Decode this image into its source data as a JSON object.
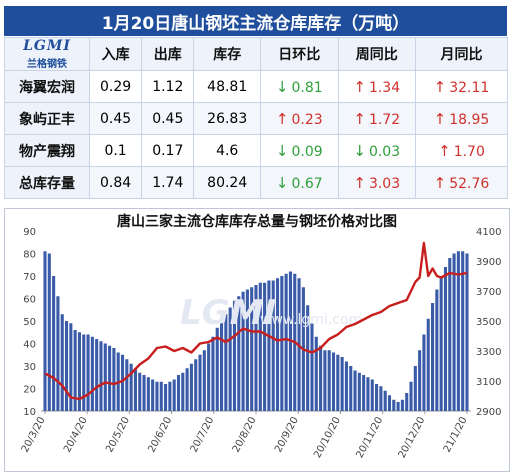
{
  "header": {
    "title": "1月20日唐山钢坯主流仓库库存（万吨）"
  },
  "table": {
    "logo_text": "LGMI",
    "logo_sub": "兰格钢铁",
    "columns": [
      "入库",
      "出库",
      "库存",
      "日环比",
      "周同比",
      "月同比"
    ],
    "rows": [
      {
        "name": "海翼宏润",
        "in": "0.29",
        "out": "1.12",
        "stock": "48.81",
        "dod": {
          "dir": "down",
          "val": "0.81"
        },
        "wow": {
          "dir": "up",
          "val": "1.34"
        },
        "mom": {
          "dir": "up",
          "val": "32.11"
        }
      },
      {
        "name": "象屿正丰",
        "in": "0.45",
        "out": "0.45",
        "stock": "26.83",
        "dod": {
          "dir": "up",
          "val": "0.23"
        },
        "wow": {
          "dir": "up",
          "val": "1.72"
        },
        "mom": {
          "dir": "up",
          "val": "18.95"
        }
      },
      {
        "name": "物产震翔",
        "in": "0.1",
        "out": "0.17",
        "stock": "4.6",
        "dod": {
          "dir": "down",
          "val": "0.09"
        },
        "wow": {
          "dir": "down",
          "val": "0.03"
        },
        "mom": {
          "dir": "up",
          "val": "1.70"
        }
      },
      {
        "name": "总库存量",
        "in": "0.84",
        "out": "1.74",
        "stock": "80.24",
        "dod": {
          "dir": "down",
          "val": "0.67"
        },
        "wow": {
          "dir": "up",
          "val": "3.03"
        },
        "mom": {
          "dir": "up",
          "val": "52.76"
        }
      }
    ],
    "colors": {
      "up": "#d0312d",
      "down": "#2f9e3b",
      "header_bg": "#1f4e9c"
    }
  },
  "chart_data": {
    "type": "bar+line",
    "title": "唐山三家主流仓库库存总量与钢坯价格对比图",
    "watermark": "LGMI",
    "watermark_sub": "www.lgmi.com",
    "x_tick_labels": [
      "20/3/20",
      "20/4/20",
      "20/5/20",
      "20/6/20",
      "20/7/20",
      "20/8/20",
      "20/9/20",
      "20/10/20",
      "20/11/20",
      "20/12/20",
      "21/1/20"
    ],
    "y_left": {
      "ylim": [
        10,
        90
      ],
      "ticks": [
        10,
        20,
        30,
        40,
        50,
        60,
        70,
        80,
        90
      ]
    },
    "y_right": {
      "ylim": [
        2900,
        4100
      ],
      "ticks": [
        2900,
        3100,
        3300,
        3500,
        3700,
        3900,
        4100
      ]
    },
    "series": [
      {
        "kind": "bar",
        "axis": "left",
        "color": "#3a5ba8",
        "points": [
          [
            0,
            81
          ],
          [
            1,
            80
          ],
          [
            2,
            70
          ],
          [
            3,
            61
          ],
          [
            4,
            53
          ],
          [
            5,
            50
          ],
          [
            6,
            49
          ],
          [
            7,
            46
          ],
          [
            8,
            45
          ],
          [
            9,
            44
          ],
          [
            10,
            44
          ],
          [
            11,
            43
          ],
          [
            12,
            42
          ],
          [
            13,
            41
          ],
          [
            14,
            40
          ],
          [
            15,
            39
          ],
          [
            16,
            38
          ],
          [
            17,
            36
          ],
          [
            18,
            35
          ],
          [
            19,
            33
          ],
          [
            20,
            31
          ],
          [
            21,
            29
          ],
          [
            22,
            27
          ],
          [
            23,
            26
          ],
          [
            24,
            25
          ],
          [
            25,
            24
          ],
          [
            26,
            23
          ],
          [
            27,
            23
          ],
          [
            28,
            22
          ],
          [
            29,
            23
          ],
          [
            30,
            24
          ],
          [
            31,
            26
          ],
          [
            32,
            27
          ],
          [
            33,
            29
          ],
          [
            34,
            31
          ],
          [
            35,
            33
          ],
          [
            36,
            35
          ],
          [
            37,
            37
          ],
          [
            38,
            40
          ],
          [
            39,
            43
          ],
          [
            40,
            47
          ],
          [
            41,
            50
          ],
          [
            42,
            53
          ],
          [
            43,
            56
          ],
          [
            44,
            59
          ],
          [
            45,
            61
          ],
          [
            46,
            63
          ],
          [
            47,
            64
          ],
          [
            48,
            65
          ],
          [
            49,
            66
          ],
          [
            50,
            67
          ],
          [
            51,
            67
          ],
          [
            52,
            68
          ],
          [
            53,
            68
          ],
          [
            54,
            69
          ],
          [
            55,
            70
          ],
          [
            56,
            71
          ],
          [
            57,
            72
          ],
          [
            58,
            71
          ],
          [
            59,
            69
          ],
          [
            60,
            65
          ],
          [
            61,
            57
          ],
          [
            62,
            49
          ],
          [
            63,
            43
          ],
          [
            64,
            39
          ],
          [
            65,
            37
          ],
          [
            66,
            37
          ],
          [
            67,
            36
          ],
          [
            68,
            35
          ],
          [
            69,
            34
          ],
          [
            70,
            32
          ],
          [
            71,
            30
          ],
          [
            72,
            28
          ],
          [
            73,
            27
          ],
          [
            74,
            26
          ],
          [
            75,
            25
          ],
          [
            76,
            24
          ],
          [
            77,
            22
          ],
          [
            78,
            21
          ],
          [
            79,
            19
          ],
          [
            80,
            17
          ],
          [
            81,
            15
          ],
          [
            82,
            14
          ],
          [
            83,
            15
          ],
          [
            84,
            18
          ],
          [
            85,
            23
          ],
          [
            86,
            30
          ],
          [
            87,
            37
          ],
          [
            88,
            44
          ],
          [
            89,
            51
          ],
          [
            90,
            58
          ],
          [
            91,
            64
          ],
          [
            92,
            70
          ],
          [
            93,
            74
          ],
          [
            94,
            78
          ],
          [
            95,
            80
          ],
          [
            96,
            81
          ],
          [
            97,
            81
          ],
          [
            98,
            80
          ]
        ]
      },
      {
        "kind": "line",
        "axis": "right",
        "color": "#c81e1e",
        "points": [
          [
            0,
            3150
          ],
          [
            2,
            3120
          ],
          [
            4,
            3070
          ],
          [
            6,
            2990
          ],
          [
            8,
            2980
          ],
          [
            10,
            3010
          ],
          [
            12,
            3060
          ],
          [
            14,
            3090
          ],
          [
            16,
            3080
          ],
          [
            18,
            3100
          ],
          [
            20,
            3150
          ],
          [
            22,
            3210
          ],
          [
            24,
            3250
          ],
          [
            26,
            3320
          ],
          [
            28,
            3330
          ],
          [
            30,
            3300
          ],
          [
            32,
            3320
          ],
          [
            34,
            3290
          ],
          [
            36,
            3350
          ],
          [
            38,
            3360
          ],
          [
            40,
            3390
          ],
          [
            42,
            3360
          ],
          [
            44,
            3400
          ],
          [
            46,
            3450
          ],
          [
            48,
            3430
          ],
          [
            50,
            3430
          ],
          [
            52,
            3400
          ],
          [
            54,
            3370
          ],
          [
            56,
            3380
          ],
          [
            58,
            3360
          ],
          [
            60,
            3310
          ],
          [
            62,
            3290
          ],
          [
            64,
            3320
          ],
          [
            66,
            3380
          ],
          [
            68,
            3410
          ],
          [
            70,
            3460
          ],
          [
            72,
            3480
          ],
          [
            74,
            3510
          ],
          [
            76,
            3540
          ],
          [
            78,
            3560
          ],
          [
            80,
            3600
          ],
          [
            82,
            3620
          ],
          [
            84,
            3640
          ],
          [
            85,
            3700
          ],
          [
            86,
            3760
          ],
          [
            87,
            3790
          ],
          [
            88,
            4020
          ],
          [
            89,
            3800
          ],
          [
            90,
            3850
          ],
          [
            91,
            3800
          ],
          [
            92,
            3790
          ],
          [
            94,
            3820
          ],
          [
            96,
            3810
          ],
          [
            98,
            3820
          ]
        ]
      }
    ]
  }
}
